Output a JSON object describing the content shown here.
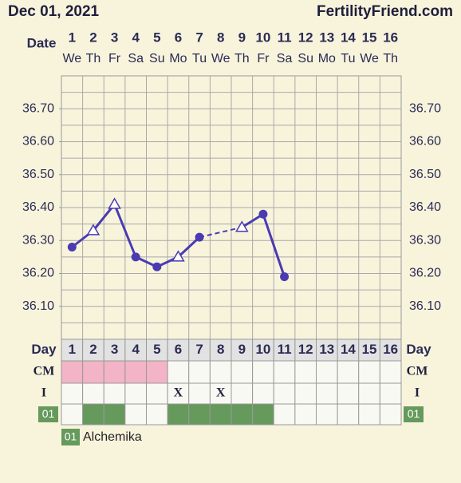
{
  "header": {
    "date": "Dec 01, 2021",
    "site": "FertilityFriend.com",
    "date_label": "Date"
  },
  "chart_data": {
    "type": "line",
    "categories": [
      "1",
      "2",
      "3",
      "4",
      "5",
      "6",
      "7",
      "8",
      "9",
      "10",
      "11",
      "12",
      "13",
      "14",
      "15",
      "16"
    ],
    "weekdays": [
      "We",
      "Th",
      "Fr",
      "Sa",
      "Su",
      "Mo",
      "Tu",
      "We",
      "Th",
      "Fr",
      "Sa",
      "Su",
      "Mo",
      "Tu",
      "We",
      "Th"
    ],
    "series": [
      {
        "color": "#4a3bb3",
        "values": [
          36.28,
          36.33,
          36.41,
          36.25,
          36.22,
          36.25,
          36.31,
          null,
          36.34,
          36.38,
          36.19,
          null,
          null,
          null,
          null,
          null
        ],
        "markers": [
          "circle",
          "triangle",
          "triangle",
          "circle",
          "circle",
          "triangle",
          "circle",
          null,
          "triangle",
          "circle",
          "circle",
          null,
          null,
          null,
          null,
          null
        ]
      }
    ],
    "ylim": [
      36.0,
      36.8
    ],
    "yticks": [
      {
        "value": 36.1,
        "label": "36.10"
      },
      {
        "value": 36.2,
        "label": "36.20"
      },
      {
        "value": 36.3,
        "label": "36.30"
      },
      {
        "value": 36.4,
        "label": "36.40"
      },
      {
        "value": 36.5,
        "label": "36.50"
      },
      {
        "value": 36.6,
        "label": "36.60"
      },
      {
        "value": 36.7,
        "label": "36.70"
      }
    ],
    "ygrid": [
      36.05,
      36.1,
      36.15,
      36.2,
      36.25,
      36.3,
      36.35,
      36.4,
      36.45,
      36.5,
      36.55,
      36.6,
      36.65,
      36.7,
      36.75
    ],
    "grid": true
  },
  "rows": {
    "day": {
      "label": "Day"
    },
    "cm": {
      "label": "CM",
      "color": "#f2b4c6",
      "marked": [
        true,
        true,
        true,
        true,
        true,
        false,
        false,
        false,
        false,
        false,
        false,
        false,
        false,
        false,
        false,
        false
      ]
    },
    "i": {
      "label": "I",
      "cells": [
        null,
        null,
        null,
        null,
        null,
        "X",
        null,
        "X",
        null,
        null,
        null,
        null,
        null,
        null,
        null,
        null
      ]
    },
    "code": {
      "label": "01",
      "color": "#659a5c",
      "marked": [
        false,
        true,
        true,
        false,
        false,
        true,
        true,
        true,
        true,
        true,
        false,
        false,
        false,
        false,
        false,
        false
      ]
    }
  },
  "legend": {
    "code": "01",
    "name": "Alchemika"
  }
}
